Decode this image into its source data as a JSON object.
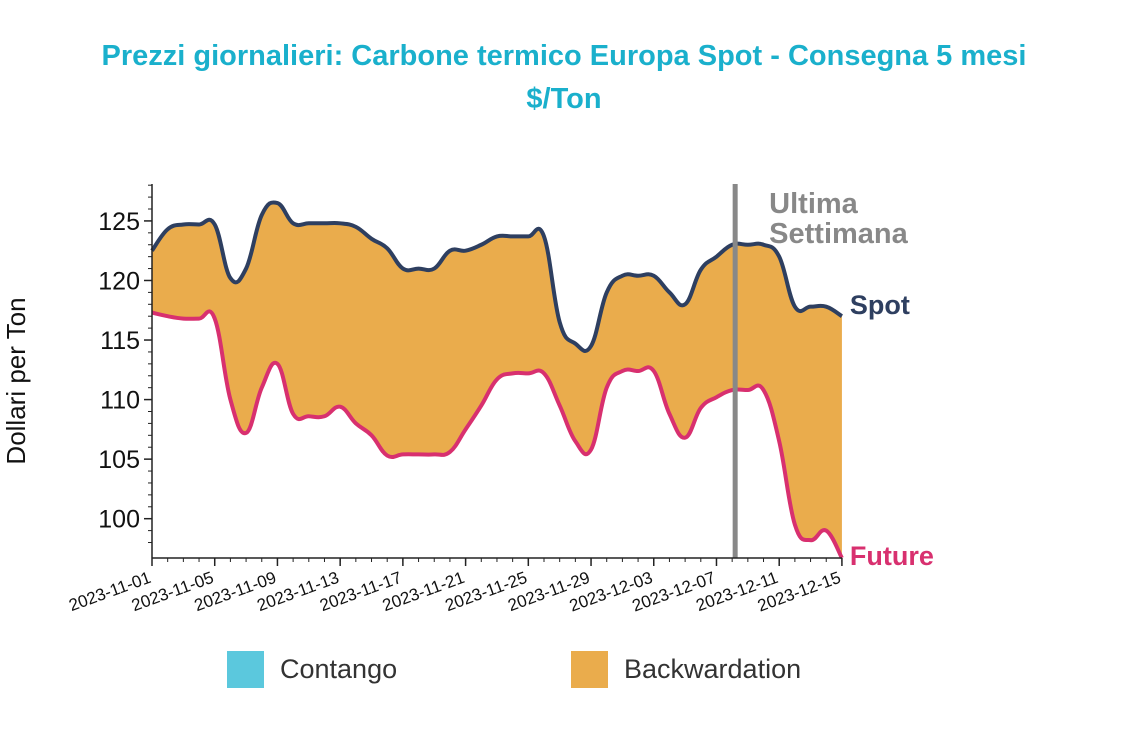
{
  "title": "Prezzi giornalieri: Carbone termico Europa Spot - Consegna 5 mesi",
  "subtitle": "$/Ton",
  "chart_data": {
    "type": "area",
    "ylabel": "Dollari per Ton",
    "ylim": [
      96.7,
      128.1
    ],
    "yticks": [
      100,
      105,
      110,
      115,
      120,
      125
    ],
    "xticks": [
      "2023-11-01",
      "2023-11-05",
      "2023-11-09",
      "2023-11-13",
      "2023-11-17",
      "2023-11-21",
      "2023-11-25",
      "2023-11-29",
      "2023-12-03",
      "2023-12-07",
      "2023-12-11",
      "2023-12-15"
    ],
    "x": [
      "2023-11-01",
      "2023-11-02",
      "2023-11-03",
      "2023-11-04",
      "2023-11-05",
      "2023-11-06",
      "2023-11-07",
      "2023-11-08",
      "2023-11-09",
      "2023-11-10",
      "2023-11-11",
      "2023-11-12",
      "2023-11-13",
      "2023-11-14",
      "2023-11-15",
      "2023-11-16",
      "2023-11-17",
      "2023-11-18",
      "2023-11-19",
      "2023-11-20",
      "2023-11-21",
      "2023-11-22",
      "2023-11-23",
      "2023-11-24",
      "2023-11-25",
      "2023-11-26",
      "2023-11-27",
      "2023-11-28",
      "2023-11-29",
      "2023-11-30",
      "2023-12-01",
      "2023-12-02",
      "2023-12-03",
      "2023-12-04",
      "2023-12-05",
      "2023-12-06",
      "2023-12-07",
      "2023-12-08",
      "2023-12-09",
      "2023-12-10",
      "2023-12-11",
      "2023-12-12",
      "2023-12-13",
      "2023-12-14",
      "2023-12-15"
    ],
    "series": [
      {
        "name": "Spot",
        "color": "#2e3f60",
        "values": [
          122.5,
          124.3,
          124.7,
          124.7,
          124.7,
          120.2,
          121.0,
          125.5,
          126.5,
          124.8,
          124.8,
          124.8,
          124.8,
          124.5,
          123.5,
          122.7,
          121.0,
          121.0,
          121.0,
          122.5,
          122.5,
          123.0,
          123.7,
          123.7,
          123.7,
          123.7,
          116.5,
          114.7,
          114.5,
          119.0,
          120.4,
          120.4,
          120.4,
          119.0,
          118.0,
          120.9,
          122.0,
          123.0,
          123.0,
          123.0,
          122.0,
          117.8,
          117.8,
          117.8,
          117.0
        ]
      },
      {
        "name": "Future",
        "color": "#d8306f",
        "values": [
          117.3,
          117.0,
          116.8,
          116.8,
          116.8,
          110.0,
          107.2,
          111.0,
          113.0,
          108.8,
          108.6,
          108.6,
          109.4,
          108.0,
          107.0,
          105.3,
          105.4,
          105.4,
          105.4,
          105.6,
          107.5,
          109.5,
          111.7,
          112.2,
          112.2,
          112.2,
          109.5,
          106.5,
          105.8,
          111.0,
          112.4,
          112.4,
          112.4,
          108.8,
          106.8,
          109.3,
          110.2,
          110.8,
          110.8,
          110.8,
          106.5,
          99.5,
          98.2,
          99.0,
          96.7
        ]
      }
    ],
    "fills": {
      "contango": "#5bc8dd",
      "backwardation": "#eaac4c"
    },
    "legend": [
      {
        "label": "Contango",
        "color": "#5bc8dd"
      },
      {
        "label": "Backwardation",
        "color": "#eaac4c"
      }
    ],
    "legend_position": "bottom",
    "marker": {
      "x": "2023-12-08",
      "label_line1": "Ultima",
      "label_line2": "Settimana",
      "color": "#888888"
    },
    "series_labels": {
      "spot": "Spot",
      "future": "Future"
    },
    "grid": false
  }
}
